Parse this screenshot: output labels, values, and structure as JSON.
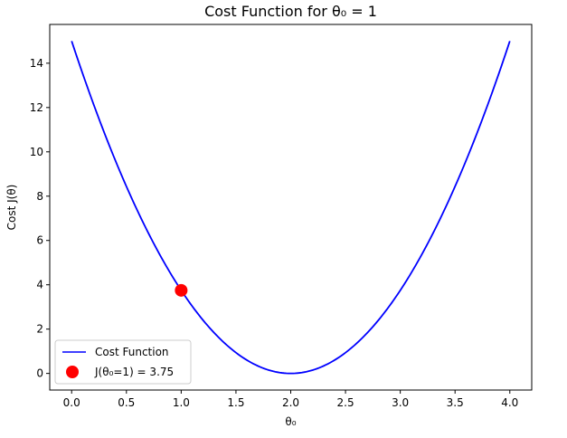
{
  "chart_data": {
    "type": "line",
    "title": "Cost Function for θ₀ = 1",
    "xlabel": "θ₀",
    "ylabel": "Cost J(θ)",
    "xlim": [
      -0.2,
      4.2
    ],
    "ylim": [
      -0.75,
      15.75
    ],
    "xticks": [
      0.0,
      0.5,
      1.0,
      1.5,
      2.0,
      2.5,
      3.0,
      3.5,
      4.0
    ],
    "xtick_labels": [
      "0.0",
      "0.5",
      "1.0",
      "1.5",
      "2.0",
      "2.5",
      "3.0",
      "3.5",
      "4.0"
    ],
    "yticks": [
      0,
      2,
      4,
      6,
      8,
      10,
      12,
      14
    ],
    "ytick_labels": [
      "0",
      "2",
      "4",
      "6",
      "8",
      "10",
      "12",
      "14"
    ],
    "grid": false,
    "legend_position": "lower-left",
    "series": [
      {
        "name": "Cost Function",
        "kind": "line",
        "color": "#0000ff",
        "x": [
          0.0,
          0.25,
          0.5,
          0.75,
          1.0,
          1.25,
          1.5,
          1.75,
          2.0,
          2.25,
          2.5,
          2.75,
          3.0,
          3.25,
          3.5,
          3.75,
          4.0
        ],
        "y": [
          15.0,
          11.484,
          8.438,
          5.859,
          3.75,
          2.109,
          0.938,
          0.234,
          0.0,
          0.234,
          0.938,
          2.109,
          3.75,
          5.859,
          8.438,
          11.484,
          15.0
        ]
      },
      {
        "name": "J(θ₀=1) = 3.75",
        "kind": "scatter",
        "color": "#ff0000",
        "x": [
          1.0
        ],
        "y": [
          3.75
        ]
      }
    ]
  }
}
